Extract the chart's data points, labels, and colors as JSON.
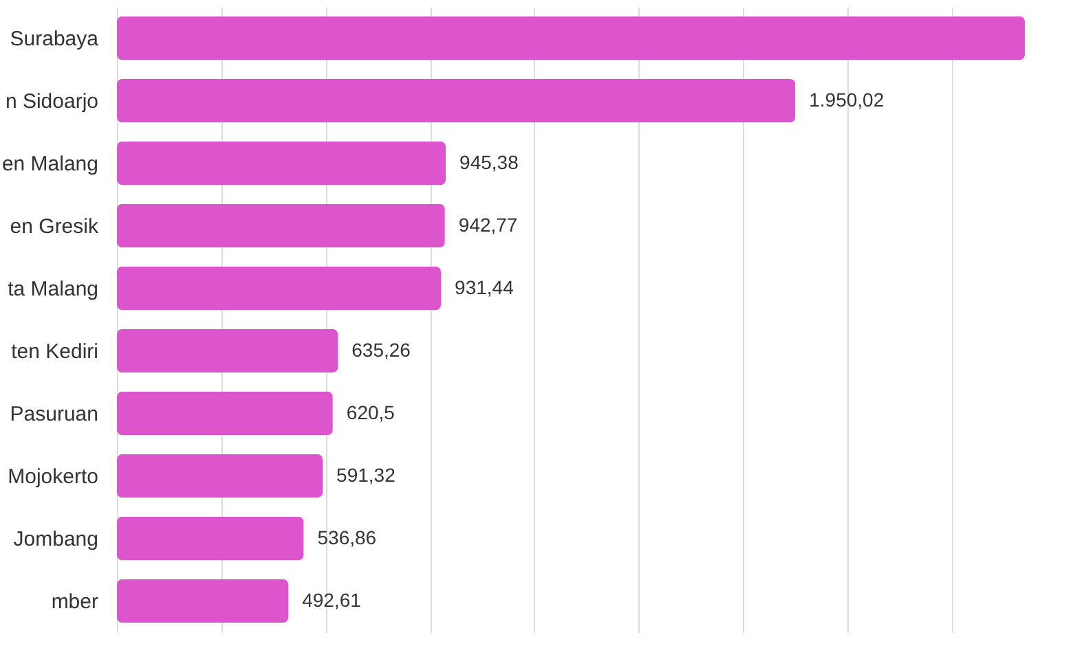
{
  "chart_data": {
    "type": "bar",
    "orientation": "horizontal",
    "categories": [
      "Surabaya",
      "n Sidoarjo",
      "en Malang",
      "en Gresik",
      "ta Malang",
      "ten Kediri",
      "Pasuruan",
      "Mojokerto",
      "Jombang",
      "mber"
    ],
    "values": [
      2610,
      1950.02,
      945.38,
      942.77,
      931.44,
      635.26,
      620.5,
      591.32,
      536.86,
      492.61
    ],
    "value_labels": [
      null,
      "1.950,02",
      "945,38",
      "942,77",
      "931,44",
      "635,26",
      "620,5",
      "591,32",
      "536,86",
      "492,61"
    ],
    "color": "#dd55cc",
    "xlim": [
      0,
      2610
    ],
    "xticks": [
      {
        "value": 0,
        "label": null
      },
      {
        "value": 300,
        "label": null
      },
      {
        "value": 600,
        "label": null
      },
      {
        "value": 900,
        "label": null
      },
      {
        "value": 1200,
        "label": null
      },
      {
        "value": 1500,
        "label": null
      },
      {
        "value": 1800,
        "label": null
      },
      {
        "value": 2100,
        "label": null
      },
      {
        "value": 2400,
        "label": null
      }
    ],
    "grid": "x",
    "tick_labels": "y",
    "legend": false
  }
}
